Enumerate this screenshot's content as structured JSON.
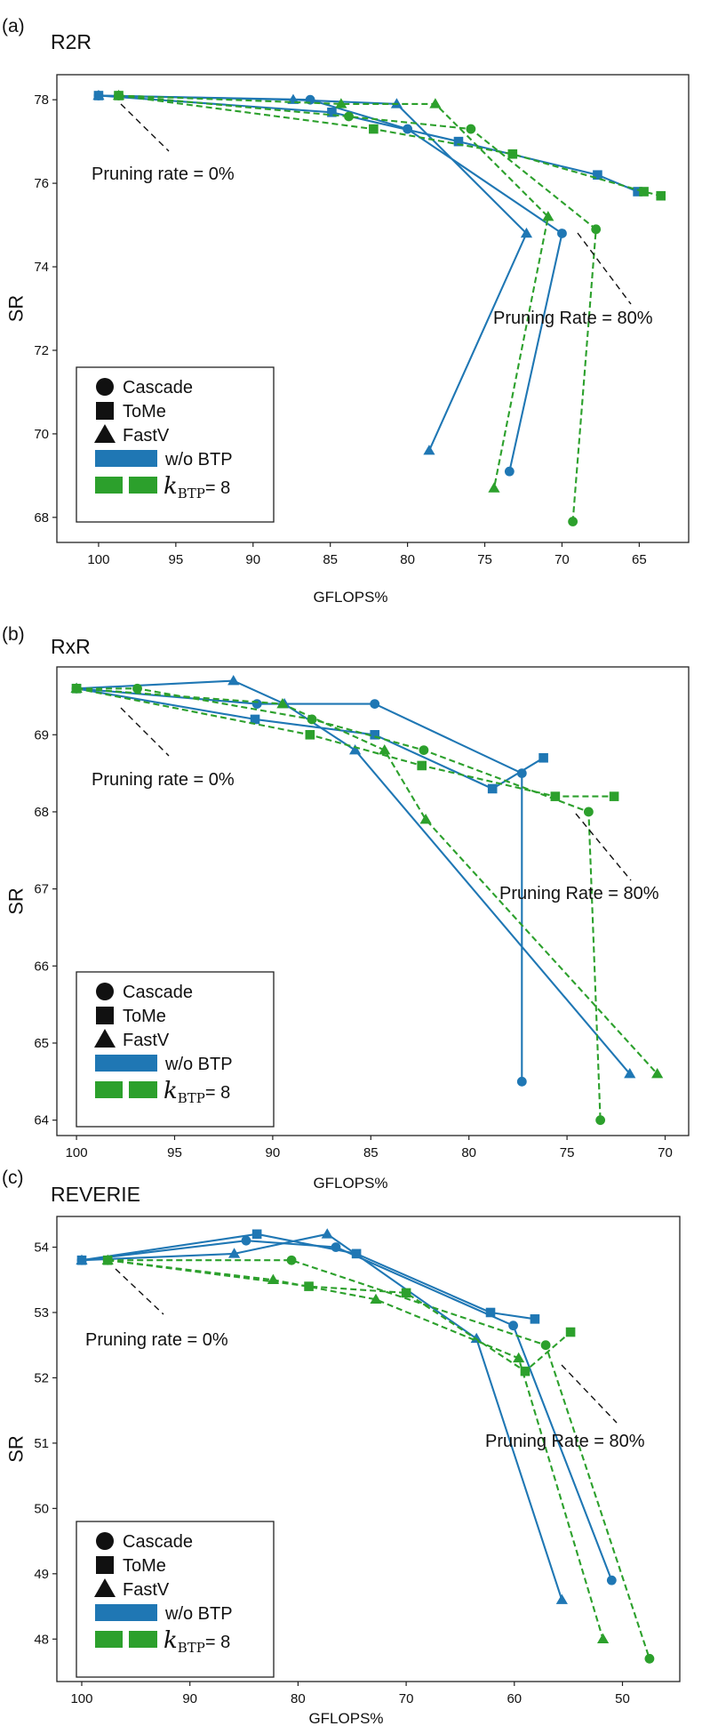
{
  "colors": {
    "blue": "#1f77b4",
    "green": "#2ca02c"
  },
  "chart_data": [
    {
      "type": "line",
      "panel": "(a)",
      "title": "R2R",
      "xlabel": "GFLOPS%",
      "ylabel": "SR",
      "xlim": [
        102.7,
        61.8
      ],
      "ylim": [
        67.4,
        78.6
      ],
      "xticks": [
        100,
        95,
        90,
        85,
        80,
        75,
        70,
        65
      ],
      "yticks": [
        68,
        70,
        72,
        74,
        76,
        78
      ],
      "annotations": [
        {
          "text": "Pruning rate = 0%",
          "side": "left"
        },
        {
          "text": "Pruning Rate = 80%",
          "side": "right"
        }
      ],
      "series": [
        {
          "name": "Cascade w/o BTP",
          "method": "Cascade",
          "variant": "w/o BTP",
          "marker": "circle",
          "style": "solid",
          "x": [
            100,
            86.3,
            80.0,
            70.0,
            73.4
          ],
          "y": [
            78.1,
            78.0,
            77.3,
            74.8,
            69.1
          ]
        },
        {
          "name": "ToMe w/o BTP",
          "method": "ToMe",
          "variant": "w/o BTP",
          "marker": "square",
          "style": "solid",
          "x": [
            100,
            84.9,
            76.7,
            67.7,
            65.1
          ],
          "y": [
            78.1,
            77.7,
            77.0,
            76.2,
            75.8
          ]
        },
        {
          "name": "FastV w/o BTP",
          "method": "FastV",
          "variant": "w/o BTP",
          "marker": "triangle",
          "style": "solid",
          "x": [
            100,
            87.4,
            80.7,
            72.3,
            78.6
          ],
          "y": [
            78.1,
            78.0,
            77.9,
            74.8,
            69.6
          ]
        },
        {
          "name": "Cascade kBTP=8",
          "method": "Cascade",
          "variant": "kBTP=8",
          "marker": "circle",
          "style": "dashed",
          "x": [
            98.7,
            83.8,
            75.9,
            67.8,
            69.3
          ],
          "y": [
            78.1,
            77.6,
            77.3,
            74.9,
            67.9
          ]
        },
        {
          "name": "ToMe kBTP=8",
          "method": "ToMe",
          "variant": "kBTP=8",
          "marker": "square",
          "style": "dashed",
          "x": [
            98.7,
            82.2,
            73.2,
            64.7,
            63.6
          ],
          "y": [
            78.1,
            77.3,
            76.7,
            75.8,
            75.7
          ]
        },
        {
          "name": "FastV kBTP=8",
          "method": "FastV",
          "variant": "kBTP=8",
          "marker": "triangle",
          "style": "dashed",
          "x": [
            98.7,
            84.3,
            78.2,
            70.9,
            74.4
          ],
          "y": [
            78.1,
            77.9,
            77.9,
            75.2,
            68.7
          ]
        }
      ]
    },
    {
      "type": "line",
      "panel": "(b)",
      "title": "RxR",
      "xlabel": "GFLOPS%",
      "ylabel": "SR",
      "xlim": [
        101.0,
        68.8
      ],
      "ylim": [
        63.8,
        69.88
      ],
      "xticks": [
        100,
        95,
        90,
        85,
        80,
        75,
        70
      ],
      "yticks": [
        64,
        65,
        66,
        67,
        68,
        69
      ],
      "annotations": [
        {
          "text": "Pruning rate = 0%",
          "side": "left"
        },
        {
          "text": "Pruning Rate = 80%",
          "side": "right"
        }
      ],
      "series": [
        {
          "name": "Cascade w/o BTP",
          "method": "Cascade",
          "variant": "w/o BTP",
          "marker": "circle",
          "style": "solid",
          "x": [
            100,
            90.8,
            84.8,
            77.3,
            77.3
          ],
          "y": [
            69.6,
            69.4,
            69.4,
            68.5,
            64.5
          ]
        },
        {
          "name": "ToMe w/o BTP",
          "method": "ToMe",
          "variant": "w/o BTP",
          "marker": "square",
          "style": "solid",
          "x": [
            100,
            90.9,
            84.8,
            78.8,
            76.2
          ],
          "y": [
            69.6,
            69.2,
            69.0,
            68.3,
            68.7
          ]
        },
        {
          "name": "FastV w/o BTP",
          "method": "FastV",
          "variant": "w/o BTP",
          "marker": "triangle",
          "style": "solid",
          "x": [
            100,
            92.0,
            89.4,
            85.8,
            71.8
          ],
          "y": [
            69.6,
            69.7,
            69.4,
            68.8,
            64.6
          ]
        },
        {
          "name": "Cascade kBTP=8",
          "method": "Cascade",
          "variant": "kBTP=8",
          "marker": "circle",
          "style": "dashed",
          "x": [
            100,
            96.9,
            88.0,
            82.3,
            73.9,
            73.3
          ],
          "y": [
            69.6,
            69.6,
            69.2,
            68.8,
            68.0,
            64.0
          ]
        },
        {
          "name": "ToMe kBTP=8",
          "method": "ToMe",
          "variant": "kBTP=8",
          "marker": "square",
          "style": "dashed",
          "x": [
            100,
            88.1,
            82.4,
            75.6,
            72.6
          ],
          "y": [
            69.6,
            69.0,
            68.6,
            68.2,
            68.2
          ]
        },
        {
          "name": "FastV kBTP=8",
          "method": "FastV",
          "variant": "kBTP=8",
          "marker": "triangle",
          "style": "dashed",
          "x": [
            100,
            89.5,
            84.3,
            82.2,
            70.4
          ],
          "y": [
            69.6,
            69.4,
            68.8,
            67.9,
            64.6
          ]
        }
      ]
    },
    {
      "type": "line",
      "panel": "(c)",
      "title": "REVERIE",
      "xlabel": "GFLOPS%",
      "ylabel": "SR",
      "xlim": [
        102.3,
        44.7
      ],
      "ylim": [
        47.35,
        54.47
      ],
      "xticks": [
        100,
        90,
        80,
        70,
        60,
        50
      ],
      "yticks": [
        48,
        49,
        50,
        51,
        52,
        53,
        54
      ],
      "annotations": [
        {
          "text": "Pruning rate = 0%",
          "side": "left"
        },
        {
          "text": "Pruning Rate = 80%",
          "side": "right"
        }
      ],
      "series": [
        {
          "name": "Cascade w/o BTP",
          "method": "Cascade",
          "variant": "w/o BTP",
          "marker": "circle",
          "style": "solid",
          "x": [
            100,
            84.8,
            76.5,
            60.1,
            51.0
          ],
          "y": [
            53.8,
            54.1,
            54.0,
            52.8,
            48.9
          ]
        },
        {
          "name": "ToMe w/o BTP",
          "method": "ToMe",
          "variant": "w/o BTP",
          "marker": "square",
          "style": "solid",
          "x": [
            100,
            83.8,
            74.6,
            62.2,
            58.1
          ],
          "y": [
            53.8,
            54.2,
            53.9,
            53.0,
            52.9
          ]
        },
        {
          "name": "FastV w/o BTP",
          "method": "FastV",
          "variant": "w/o BTP",
          "marker": "triangle",
          "style": "solid",
          "x": [
            100,
            85.9,
            77.3,
            63.5,
            55.6
          ],
          "y": [
            53.8,
            53.9,
            54.2,
            52.6,
            48.6
          ]
        },
        {
          "name": "Cascade kBTP=8",
          "method": "Cascade",
          "variant": "kBTP=8",
          "marker": "circle",
          "style": "dashed",
          "x": [
            97.6,
            80.6,
            57.1,
            47.5
          ],
          "y": [
            53.8,
            53.8,
            52.5,
            47.7
          ]
        },
        {
          "name": "ToMe kBTP=8",
          "method": "ToMe",
          "variant": "kBTP=8",
          "marker": "square",
          "style": "dashed",
          "x": [
            97.6,
            79.0,
            70.0,
            59.0,
            54.8
          ],
          "y": [
            53.8,
            53.4,
            53.3,
            52.1,
            52.7
          ]
        },
        {
          "name": "FastV kBTP=8",
          "method": "FastV",
          "variant": "kBTP=8",
          "marker": "triangle",
          "style": "dashed",
          "x": [
            97.6,
            82.3,
            72.8,
            59.6,
            51.8
          ],
          "y": [
            53.8,
            53.5,
            53.2,
            52.3,
            48.0
          ]
        }
      ]
    }
  ],
  "legend": {
    "entries": [
      {
        "label": "Cascade",
        "icon": "circle"
      },
      {
        "label": "ToMe",
        "icon": "square"
      },
      {
        "label": "FastV",
        "icon": "triangle"
      },
      {
        "label": "w/o BTP",
        "icon": "blue-bar"
      },
      {
        "label_symbol": "k",
        "label_sub": "BTP",
        "label_suffix": "= 8",
        "icon": "green-double-bar"
      }
    ]
  }
}
